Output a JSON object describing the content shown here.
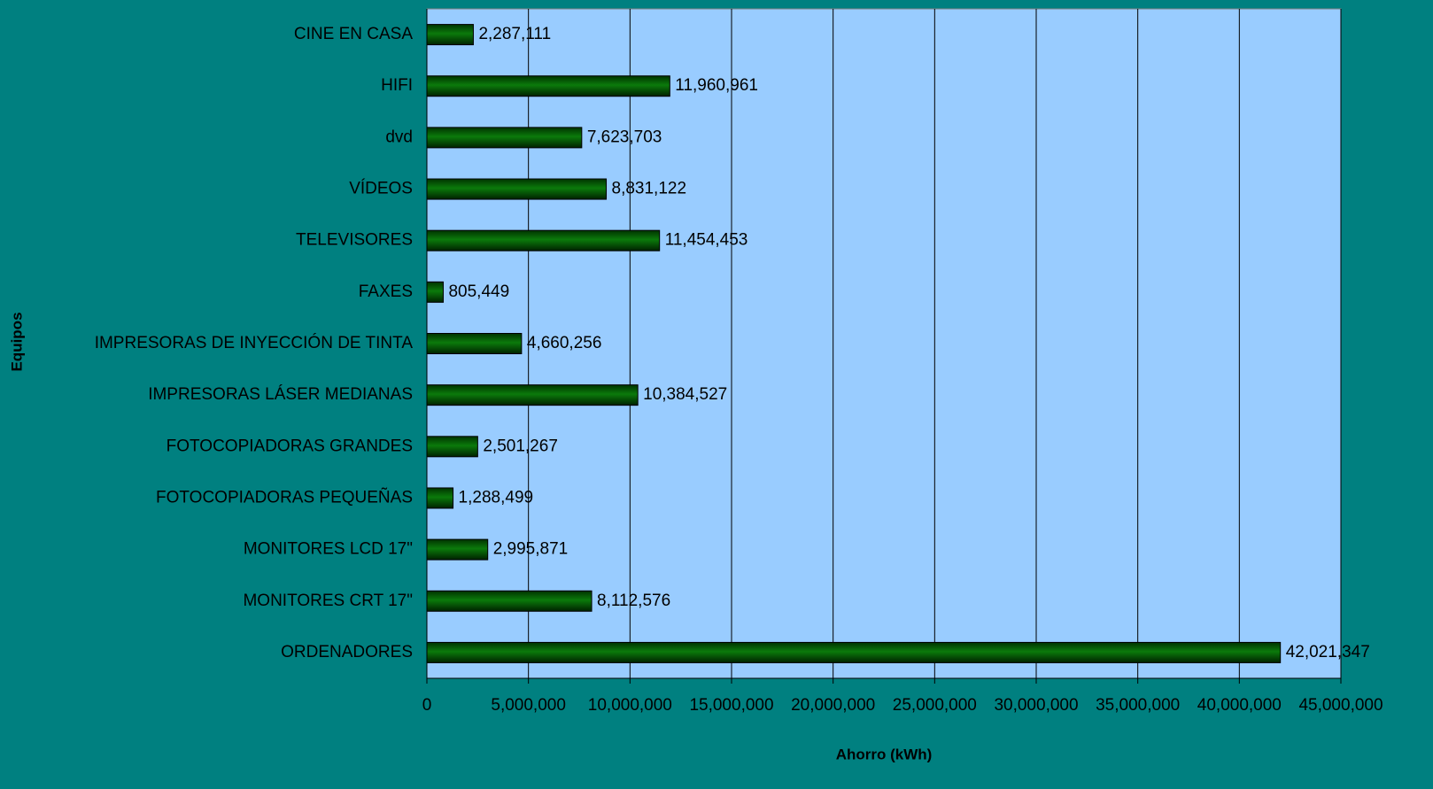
{
  "chart_data": {
    "type": "bar",
    "orientation": "horizontal",
    "x_label": "Ahorro (kWh)",
    "y_label": "Equipos",
    "categories": [
      "CINE EN CASA",
      "HIFI",
      "dvd",
      "VÍDEOS",
      "TELEVISORES",
      "FAXES",
      "IMPRESORAS DE INYECCIÓN DE TINTA",
      "IMPRESORAS LÁSER MEDIANAS",
      "FOTOCOPIADORAS GRANDES",
      "FOTOCOPIADORAS PEQUEÑAS",
      "MONITORES LCD 17\"",
      "MONITORES CRT 17\"",
      "ORDENADORES"
    ],
    "values": [
      2287111,
      11960961,
      7623703,
      8831122,
      11454453,
      805449,
      4660256,
      10384527,
      2501267,
      1288499,
      2995871,
      8112576,
      42021347
    ],
    "value_labels": [
      "2,287,111",
      "11,960,961",
      "7,623,703",
      "8,831,122",
      "11,454,453",
      "805,449",
      "4,660,256",
      "10,384,527",
      "2,501,267",
      "1,288,499",
      "2,995,871",
      "8,112,576",
      "42,021,347"
    ],
    "color": "#0b7a0b",
    "xlim": [
      0,
      45000000
    ],
    "xticks": [
      0,
      {
        "value": 5000000,
        "label": "5,000,000"
      },
      {
        "value": 10000000,
        "label": "10,000,000"
      },
      {
        "value": 15000000,
        "label": "15,000,000"
      },
      {
        "value": 20000000,
        "label": "20,000,000"
      },
      {
        "value": 25000000,
        "label": "25,000,000"
      },
      {
        "value": 30000000,
        "label": "30,000,000"
      },
      {
        "value": 35000000,
        "label": "35,000,000"
      },
      {
        "value": 40000000,
        "label": "40,000,000"
      },
      {
        "value": 45000000,
        "label": "45,000,000"
      }
    ],
    "grid": true
  }
}
